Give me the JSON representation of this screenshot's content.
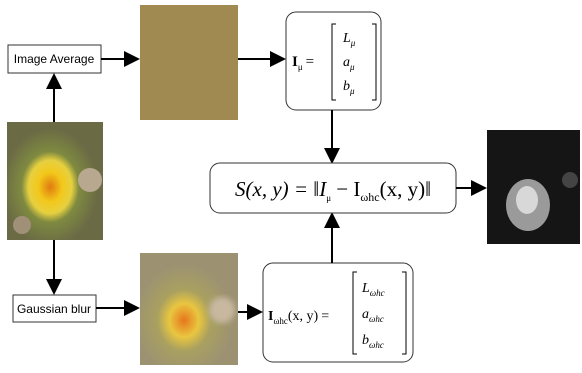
{
  "labels": {
    "average": "Image Average",
    "blur": "Gaussian blur"
  },
  "mean_vector": {
    "lhs": "I",
    "lhs_sub": "μ",
    "eq": "=",
    "entries": [
      {
        "base": "L",
        "sub": "μ"
      },
      {
        "base": "a",
        "sub": "μ"
      },
      {
        "base": "b",
        "sub": "μ"
      }
    ]
  },
  "blur_vector": {
    "lhs": "I",
    "lhs_sub": "ωhc",
    "args": "(x, y)",
    "eq": "=",
    "entries": [
      {
        "base": "L",
        "sub": "ωhc"
      },
      {
        "base": "a",
        "sub": "ωhc"
      },
      {
        "base": "b",
        "sub": "ωhc"
      }
    ]
  },
  "saliency": {
    "lhs": "S(x, y) = ‖I",
    "sub1": "μ",
    "mid": " − I",
    "sub2": "ωhc",
    "rhs": "(x, y)‖"
  }
}
